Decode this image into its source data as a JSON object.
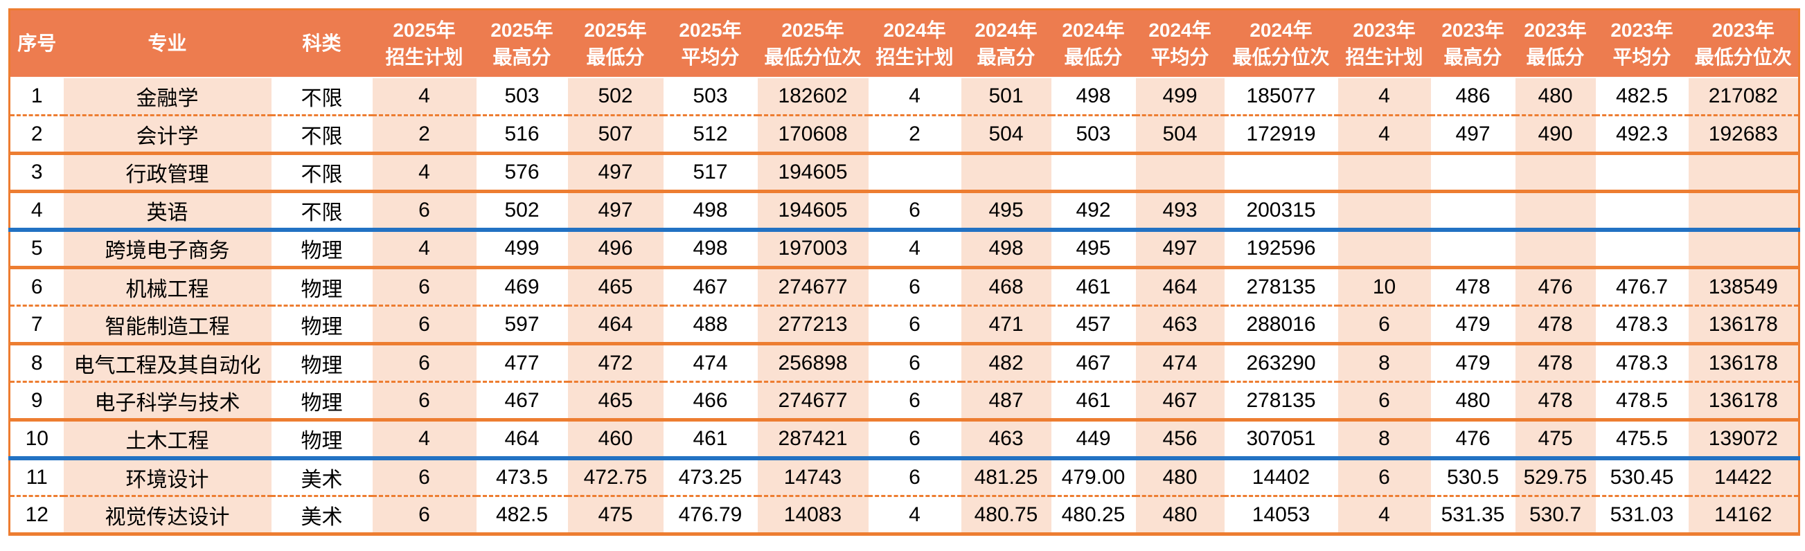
{
  "colors": {
    "header_bg": "#ED7C4F",
    "stripe_bg": "#FBE1D2",
    "border_orange": "#ED7D31",
    "divider_blue": "#2272C3"
  },
  "table": {
    "columns": [
      {
        "id": "no",
        "line1": "序号",
        "line2": ""
      },
      {
        "id": "major",
        "line1": "专业",
        "line2": ""
      },
      {
        "id": "category",
        "line1": "科类",
        "line2": ""
      },
      {
        "id": "plan-2025",
        "line1": "2025年",
        "line2": "招生计划"
      },
      {
        "id": "max-2025",
        "line1": "2025年",
        "line2": "最高分"
      },
      {
        "id": "min-2025",
        "line1": "2025年",
        "line2": "最低分"
      },
      {
        "id": "avg-2025",
        "line1": "2025年",
        "line2": "平均分"
      },
      {
        "id": "rank-2025",
        "line1": "2025年",
        "line2": "最低分位次"
      },
      {
        "id": "plan-2024",
        "line1": "2024年",
        "line2": "招生计划"
      },
      {
        "id": "max-2024",
        "line1": "2024年",
        "line2": "最高分"
      },
      {
        "id": "min-2024",
        "line1": "2024年",
        "line2": "最低分"
      },
      {
        "id": "avg-2024",
        "line1": "2024年",
        "line2": "平均分"
      },
      {
        "id": "rank-2024",
        "line1": "2024年",
        "line2": "最低分位次"
      },
      {
        "id": "plan-2023",
        "line1": "2023年",
        "line2": "招生计划"
      },
      {
        "id": "max-2023",
        "line1": "2023年",
        "line2": "最高分"
      },
      {
        "id": "min-2023",
        "line1": "2023年",
        "line2": "最低分"
      },
      {
        "id": "avg-2023",
        "line1": "2023年",
        "line2": "平均分"
      },
      {
        "id": "rank-2023",
        "line1": "2023年",
        "line2": "最低分位次"
      }
    ],
    "rows": [
      {
        "no": "1",
        "major": "金融学",
        "category": "不限",
        "y2025": [
          "4",
          "503",
          "502",
          "503",
          "182602"
        ],
        "y2024": [
          "4",
          "501",
          "498",
          "499",
          "185077"
        ],
        "y2023": [
          "4",
          "486",
          "480",
          "482.5",
          "217082"
        ],
        "divider_after": "dashed"
      },
      {
        "no": "2",
        "major": "会计学",
        "category": "不限",
        "y2025": [
          "2",
          "516",
          "507",
          "512",
          "170608"
        ],
        "y2024": [
          "2",
          "504",
          "503",
          "504",
          "172919"
        ],
        "y2023": [
          "4",
          "497",
          "490",
          "492.3",
          "192683"
        ],
        "divider_after": "solid"
      },
      {
        "no": "3",
        "major": "行政管理",
        "category": "不限",
        "y2025": [
          "4",
          "576",
          "497",
          "517",
          "194605"
        ],
        "y2024": [
          "",
          "",
          "",
          "",
          ""
        ],
        "y2023": [
          "",
          "",
          "",
          "",
          ""
        ],
        "divider_after": "solid"
      },
      {
        "no": "4",
        "major": "英语",
        "category": "不限",
        "y2025": [
          "6",
          "502",
          "497",
          "498",
          "194605"
        ],
        "y2024": [
          "6",
          "495",
          "492",
          "493",
          "200315"
        ],
        "y2023": [
          "",
          "",
          "",
          "",
          ""
        ],
        "divider_after": "blue"
      },
      {
        "no": "5",
        "major": "跨境电子商务",
        "category": "物理",
        "y2025": [
          "4",
          "499",
          "496",
          "498",
          "197003"
        ],
        "y2024": [
          "4",
          "498",
          "495",
          "497",
          "192596"
        ],
        "y2023": [
          "",
          "",
          "",
          "",
          ""
        ],
        "divider_after": "solid"
      },
      {
        "no": "6",
        "major": "机械工程",
        "category": "物理",
        "y2025": [
          "6",
          "469",
          "465",
          "467",
          "274677"
        ],
        "y2024": [
          "6",
          "468",
          "461",
          "464",
          "278135"
        ],
        "y2023": [
          "10",
          "478",
          "476",
          "476.7",
          "138549"
        ],
        "divider_after": "dashed"
      },
      {
        "no": "7",
        "major": "智能制造工程",
        "category": "物理",
        "y2025": [
          "6",
          "597",
          "464",
          "488",
          "277213"
        ],
        "y2024": [
          "6",
          "471",
          "457",
          "463",
          "288016"
        ],
        "y2023": [
          "6",
          "479",
          "478",
          "478.3",
          "136178"
        ],
        "divider_after": "solid"
      },
      {
        "no": "8",
        "major": "电气工程及其自动化",
        "category": "物理",
        "y2025": [
          "6",
          "477",
          "472",
          "474",
          "256898"
        ],
        "y2024": [
          "6",
          "482",
          "467",
          "474",
          "263290"
        ],
        "y2023": [
          "8",
          "479",
          "478",
          "478.3",
          "136178"
        ],
        "divider_after": "dashed"
      },
      {
        "no": "9",
        "major": "电子科学与技术",
        "category": "物理",
        "y2025": [
          "6",
          "467",
          "465",
          "466",
          "274677"
        ],
        "y2024": [
          "6",
          "487",
          "461",
          "467",
          "278135"
        ],
        "y2023": [
          "6",
          "480",
          "478",
          "478.5",
          "136178"
        ],
        "divider_after": "solid"
      },
      {
        "no": "10",
        "major": "土木工程",
        "category": "物理",
        "y2025": [
          "4",
          "464",
          "460",
          "461",
          "287421"
        ],
        "y2024": [
          "6",
          "463",
          "449",
          "456",
          "307051"
        ],
        "y2023": [
          "8",
          "476",
          "475",
          "475.5",
          "139072"
        ],
        "divider_after": "blue"
      },
      {
        "no": "11",
        "major": "环境设计",
        "category": "美术",
        "y2025": [
          "6",
          "473.5",
          "472.75",
          "473.25",
          "14743"
        ],
        "y2024": [
          "6",
          "481.25",
          "479.00",
          "480",
          "14402"
        ],
        "y2023": [
          "6",
          "530.5",
          "529.75",
          "530.45",
          "14422"
        ],
        "divider_after": "dashed"
      },
      {
        "no": "12",
        "major": "视觉传达设计",
        "category": "美术",
        "y2025": [
          "6",
          "482.5",
          "475",
          "476.79",
          "14083"
        ],
        "y2024": [
          "4",
          "480.75",
          "480.25",
          "480",
          "14053"
        ],
        "y2023": [
          "4",
          "531.35",
          "530.7",
          "531.03",
          "14162"
        ],
        "divider_after": "solid"
      }
    ]
  },
  "chart_data": {
    "type": "table",
    "title": "",
    "columns": [
      "序号",
      "专业",
      "科类",
      "2025年招生计划",
      "2025年最高分",
      "2025年最低分",
      "2025年平均分",
      "2025年最低分位次",
      "2024年招生计划",
      "2024年最高分",
      "2024年最低分",
      "2024年平均分",
      "2024年最低分位次",
      "2023年招生计划",
      "2023年最高分",
      "2023年最低分",
      "2023年平均分",
      "2023年最低分位次"
    ],
    "rows": [
      [
        "1",
        "金融学",
        "不限",
        "4",
        "503",
        "502",
        "503",
        "182602",
        "4",
        "501",
        "498",
        "499",
        "185077",
        "4",
        "486",
        "480",
        "482.5",
        "217082"
      ],
      [
        "2",
        "会计学",
        "不限",
        "2",
        "516",
        "507",
        "512",
        "170608",
        "2",
        "504",
        "503",
        "504",
        "172919",
        "4",
        "497",
        "490",
        "492.3",
        "192683"
      ],
      [
        "3",
        "行政管理",
        "不限",
        "4",
        "576",
        "497",
        "517",
        "194605",
        "",
        "",
        "",
        "",
        "",
        "",
        "",
        "",
        "",
        ""
      ],
      [
        "4",
        "英语",
        "不限",
        "6",
        "502",
        "497",
        "498",
        "194605",
        "6",
        "495",
        "492",
        "493",
        "200315",
        "",
        "",
        "",
        "",
        ""
      ],
      [
        "5",
        "跨境电子商务",
        "物理",
        "4",
        "499",
        "496",
        "498",
        "197003",
        "4",
        "498",
        "495",
        "497",
        "192596",
        "",
        "",
        "",
        "",
        ""
      ],
      [
        "6",
        "机械工程",
        "物理",
        "6",
        "469",
        "465",
        "467",
        "274677",
        "6",
        "468",
        "461",
        "464",
        "278135",
        "10",
        "478",
        "476",
        "476.7",
        "138549"
      ],
      [
        "7",
        "智能制造工程",
        "物理",
        "6",
        "597",
        "464",
        "488",
        "277213",
        "6",
        "471",
        "457",
        "463",
        "288016",
        "6",
        "479",
        "478",
        "478.3",
        "136178"
      ],
      [
        "8",
        "电气工程及其自动化",
        "物理",
        "6",
        "477",
        "472",
        "474",
        "256898",
        "6",
        "482",
        "467",
        "474",
        "263290",
        "8",
        "479",
        "478",
        "478.3",
        "136178"
      ],
      [
        "9",
        "电子科学与技术",
        "物理",
        "6",
        "467",
        "465",
        "466",
        "274677",
        "6",
        "487",
        "461",
        "467",
        "278135",
        "6",
        "480",
        "478",
        "478.5",
        "136178"
      ],
      [
        "10",
        "土木工程",
        "物理",
        "4",
        "464",
        "460",
        "461",
        "287421",
        "6",
        "463",
        "449",
        "456",
        "307051",
        "8",
        "476",
        "475",
        "475.5",
        "139072"
      ],
      [
        "11",
        "环境设计",
        "美术",
        "6",
        "473.5",
        "472.75",
        "473.25",
        "14743",
        "6",
        "481.25",
        "479.00",
        "480",
        "14402",
        "6",
        "530.5",
        "529.75",
        "530.45",
        "14422"
      ],
      [
        "12",
        "视觉传达设计",
        "美术",
        "6",
        "482.5",
        "475",
        "476.79",
        "14083",
        "4",
        "480.75",
        "480.25",
        "480",
        "14053",
        "4",
        "531.35",
        "530.7",
        "531.03",
        "14162"
      ]
    ]
  }
}
